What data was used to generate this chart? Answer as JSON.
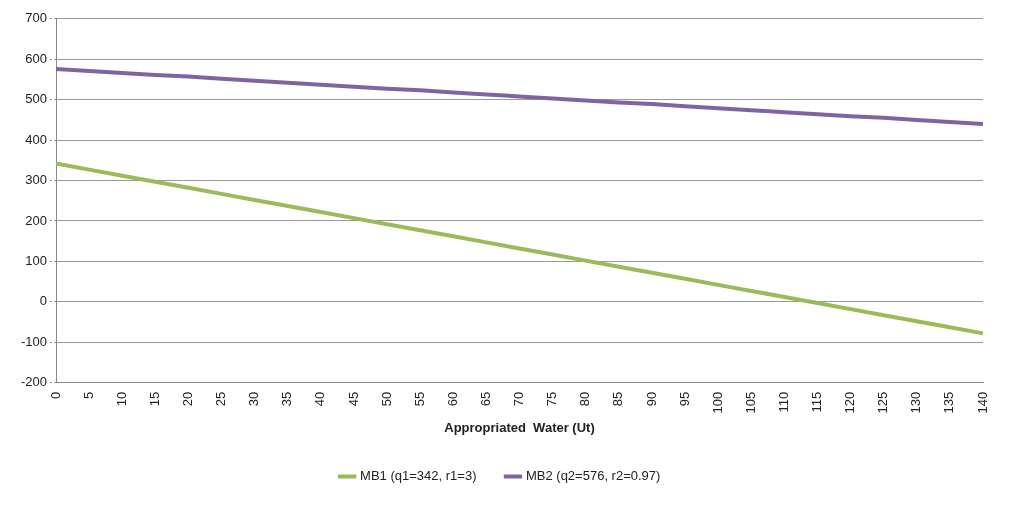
{
  "chart_data": {
    "type": "line",
    "xlabel": "Appropriated  Water (Ut)",
    "categories": [
      "0",
      "5",
      "10",
      "15",
      "20",
      "25",
      "30",
      "35",
      "40",
      "45",
      "50",
      "55",
      "60",
      "65",
      "70",
      "75",
      "80",
      "85",
      "90",
      "95",
      "100",
      "105",
      "110",
      "115",
      "120",
      "125",
      "130",
      "135",
      "140"
    ],
    "series": [
      {
        "name": "MB1 (q1=342, r1=3)",
        "color": "#9bbb59",
        "values": [
          342,
          327,
          312,
          297,
          282,
          267,
          252,
          237,
          222,
          207,
          192,
          177,
          162,
          147,
          132,
          117,
          102,
          87,
          72,
          57,
          42,
          27,
          12,
          -3,
          -18,
          -33,
          -48,
          -63,
          -78
        ]
      },
      {
        "name": "MB2 (q2=576, r2=0.97)",
        "color": "#8064a2",
        "values": [
          576,
          571,
          566,
          561,
          557,
          552,
          547,
          542,
          537,
          532,
          527,
          523,
          518,
          513,
          508,
          503,
          498,
          493,
          489,
          484,
          479,
          474,
          469,
          464,
          459,
          455,
          450,
          445,
          440
        ]
      }
    ],
    "ylim": [
      -200,
      700
    ],
    "yticks": [
      -200,
      -100,
      0,
      100,
      200,
      300,
      400,
      500,
      600,
      700
    ],
    "grid": "y",
    "legend": "bottom",
    "marker": "none",
    "line_style": "solid"
  }
}
